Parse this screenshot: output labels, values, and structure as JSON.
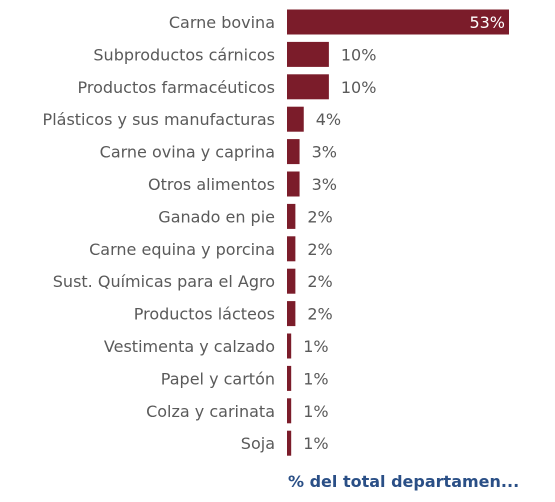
{
  "chart_data": {
    "type": "bar",
    "orientation": "horizontal",
    "categories": [
      "Carne bovina",
      "Subproductos cárnicos",
      "Productos farmacéuticos",
      "Plásticos y sus manufacturas",
      "Carne ovina y caprina",
      "Otros alimentos",
      "Ganado en pie",
      "Carne equina y porcina",
      "Sust. Químicas para el Agro",
      "Productos lácteos",
      "Vestimenta y calzado",
      "Papel y cartón",
      "Colza y carinata",
      "Soja"
    ],
    "values": [
      53,
      10,
      10,
      4,
      3,
      3,
      2,
      2,
      2,
      2,
      1,
      1,
      1,
      1
    ],
    "data_labels": [
      "53%",
      "10%",
      "10%",
      "4%",
      "3%",
      "3%",
      "2%",
      "2%",
      "2%",
      "2%",
      "1%",
      "1%",
      "1%",
      "1%"
    ],
    "xlabel": "% del total departamen...",
    "colors": {
      "bar": "#7b1c2a",
      "label": "#5a5a5a",
      "axis_title": "#2a4f86",
      "inside_label": "#ffffff"
    }
  }
}
